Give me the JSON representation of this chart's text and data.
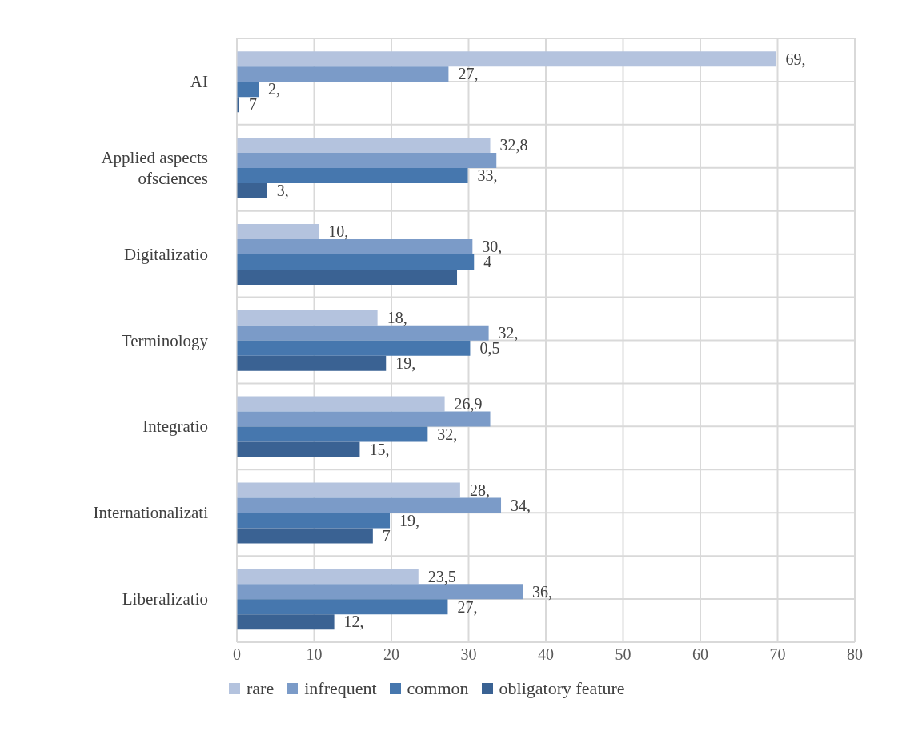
{
  "chart_data": {
    "type": "bar",
    "orientation": "horizontal",
    "categories": [
      "AI",
      "Applied aspects ofsciences",
      "Digitalizatio",
      "Terminology",
      "Integratio",
      "Internationalizati",
      "Liberalizatio"
    ],
    "series": [
      {
        "name": "rare",
        "color": "#b4c3de",
        "values": [
          69.8,
          32.8,
          10.6,
          18.2,
          26.9,
          28.9,
          23.5
        ]
      },
      {
        "name": "infrequent",
        "color": "#7b9bc8",
        "values": [
          27.4,
          33.6,
          30.5,
          32.6,
          32.8,
          34.2,
          37.0
        ]
      },
      {
        "name": "common",
        "color": "#4677ae",
        "values": [
          2.8,
          29.9,
          30.7,
          30.2,
          24.7,
          19.8,
          27.3
        ]
      },
      {
        "name": "obligatory feature",
        "color": "#3a6293",
        "values": [
          0.3,
          3.9,
          28.5,
          19.3,
          15.9,
          17.6,
          12.6
        ]
      }
    ],
    "annotations": [
      "69,",
      {
        "text": "27,",
        "x": 27.4,
        "y": "AI"
      },
      {
        "text": "2,",
        "x": 2.8,
        "y": "AI"
      },
      {
        "text": "7",
        "x": 0.3,
        "y": "AI"
      },
      {
        "text": "32,8",
        "x": 32.8,
        "y": "Applied aspects ofsciences"
      },
      {
        "text": "33,",
        "x": 29.9,
        "y": "Applied aspects ofsciences"
      },
      {
        "text": "3,",
        "x": 3.9,
        "y": "Applied aspects ofsciences"
      },
      {
        "text": "10,",
        "x": 10.6,
        "y": "Digitalizatio"
      },
      {
        "text": "30,",
        "x": 30.5,
        "y": "Digitalizatio"
      },
      {
        "text": "4",
        "x": 30.7,
        "y": "Digitalizatio"
      },
      {
        "text": "18,",
        "x": 18.2,
        "y": "Terminology"
      },
      {
        "text": "32,",
        "x": 32.6,
        "y": "Terminology"
      },
      {
        "text": "0,5",
        "x": 30.2,
        "y": "Terminology"
      },
      {
        "text": "19,",
        "x": 19.3,
        "y": "Terminology"
      },
      {
        "text": "26,9",
        "x": 26.9,
        "y": "Integratio"
      },
      {
        "text": "32,",
        "x": 24.7,
        "y": "Integratio"
      },
      {
        "text": "15,",
        "x": 15.9,
        "y": "Integratio"
      },
      {
        "text": "28,",
        "x": 28.9,
        "y": "Internationalizati"
      },
      {
        "text": "34,",
        "x": 34.2,
        "y": "Internationalizati"
      },
      {
        "text": "19,",
        "x": 19.8,
        "y": "Internationalizati"
      },
      {
        "text": "7",
        "x": 17.6,
        "y": "Internationalizati"
      },
      {
        "text": "23,5",
        "x": 23.5,
        "y": "Liberalizatio"
      },
      {
        "text": "36,",
        "x": 37.0,
        "y": "Liberalizatio"
      },
      {
        "text": "27,",
        "x": 27.3,
        "y": "Liberalizatio"
      },
      {
        "text": "12,",
        "x": 12.6,
        "y": "Liberalizatio"
      }
    ],
    "xlim": [
      0,
      80
    ],
    "xticks": [
      0,
      10,
      20,
      30,
      40,
      50,
      60,
      70,
      80
    ],
    "grid": true,
    "legend": "bottom"
  }
}
